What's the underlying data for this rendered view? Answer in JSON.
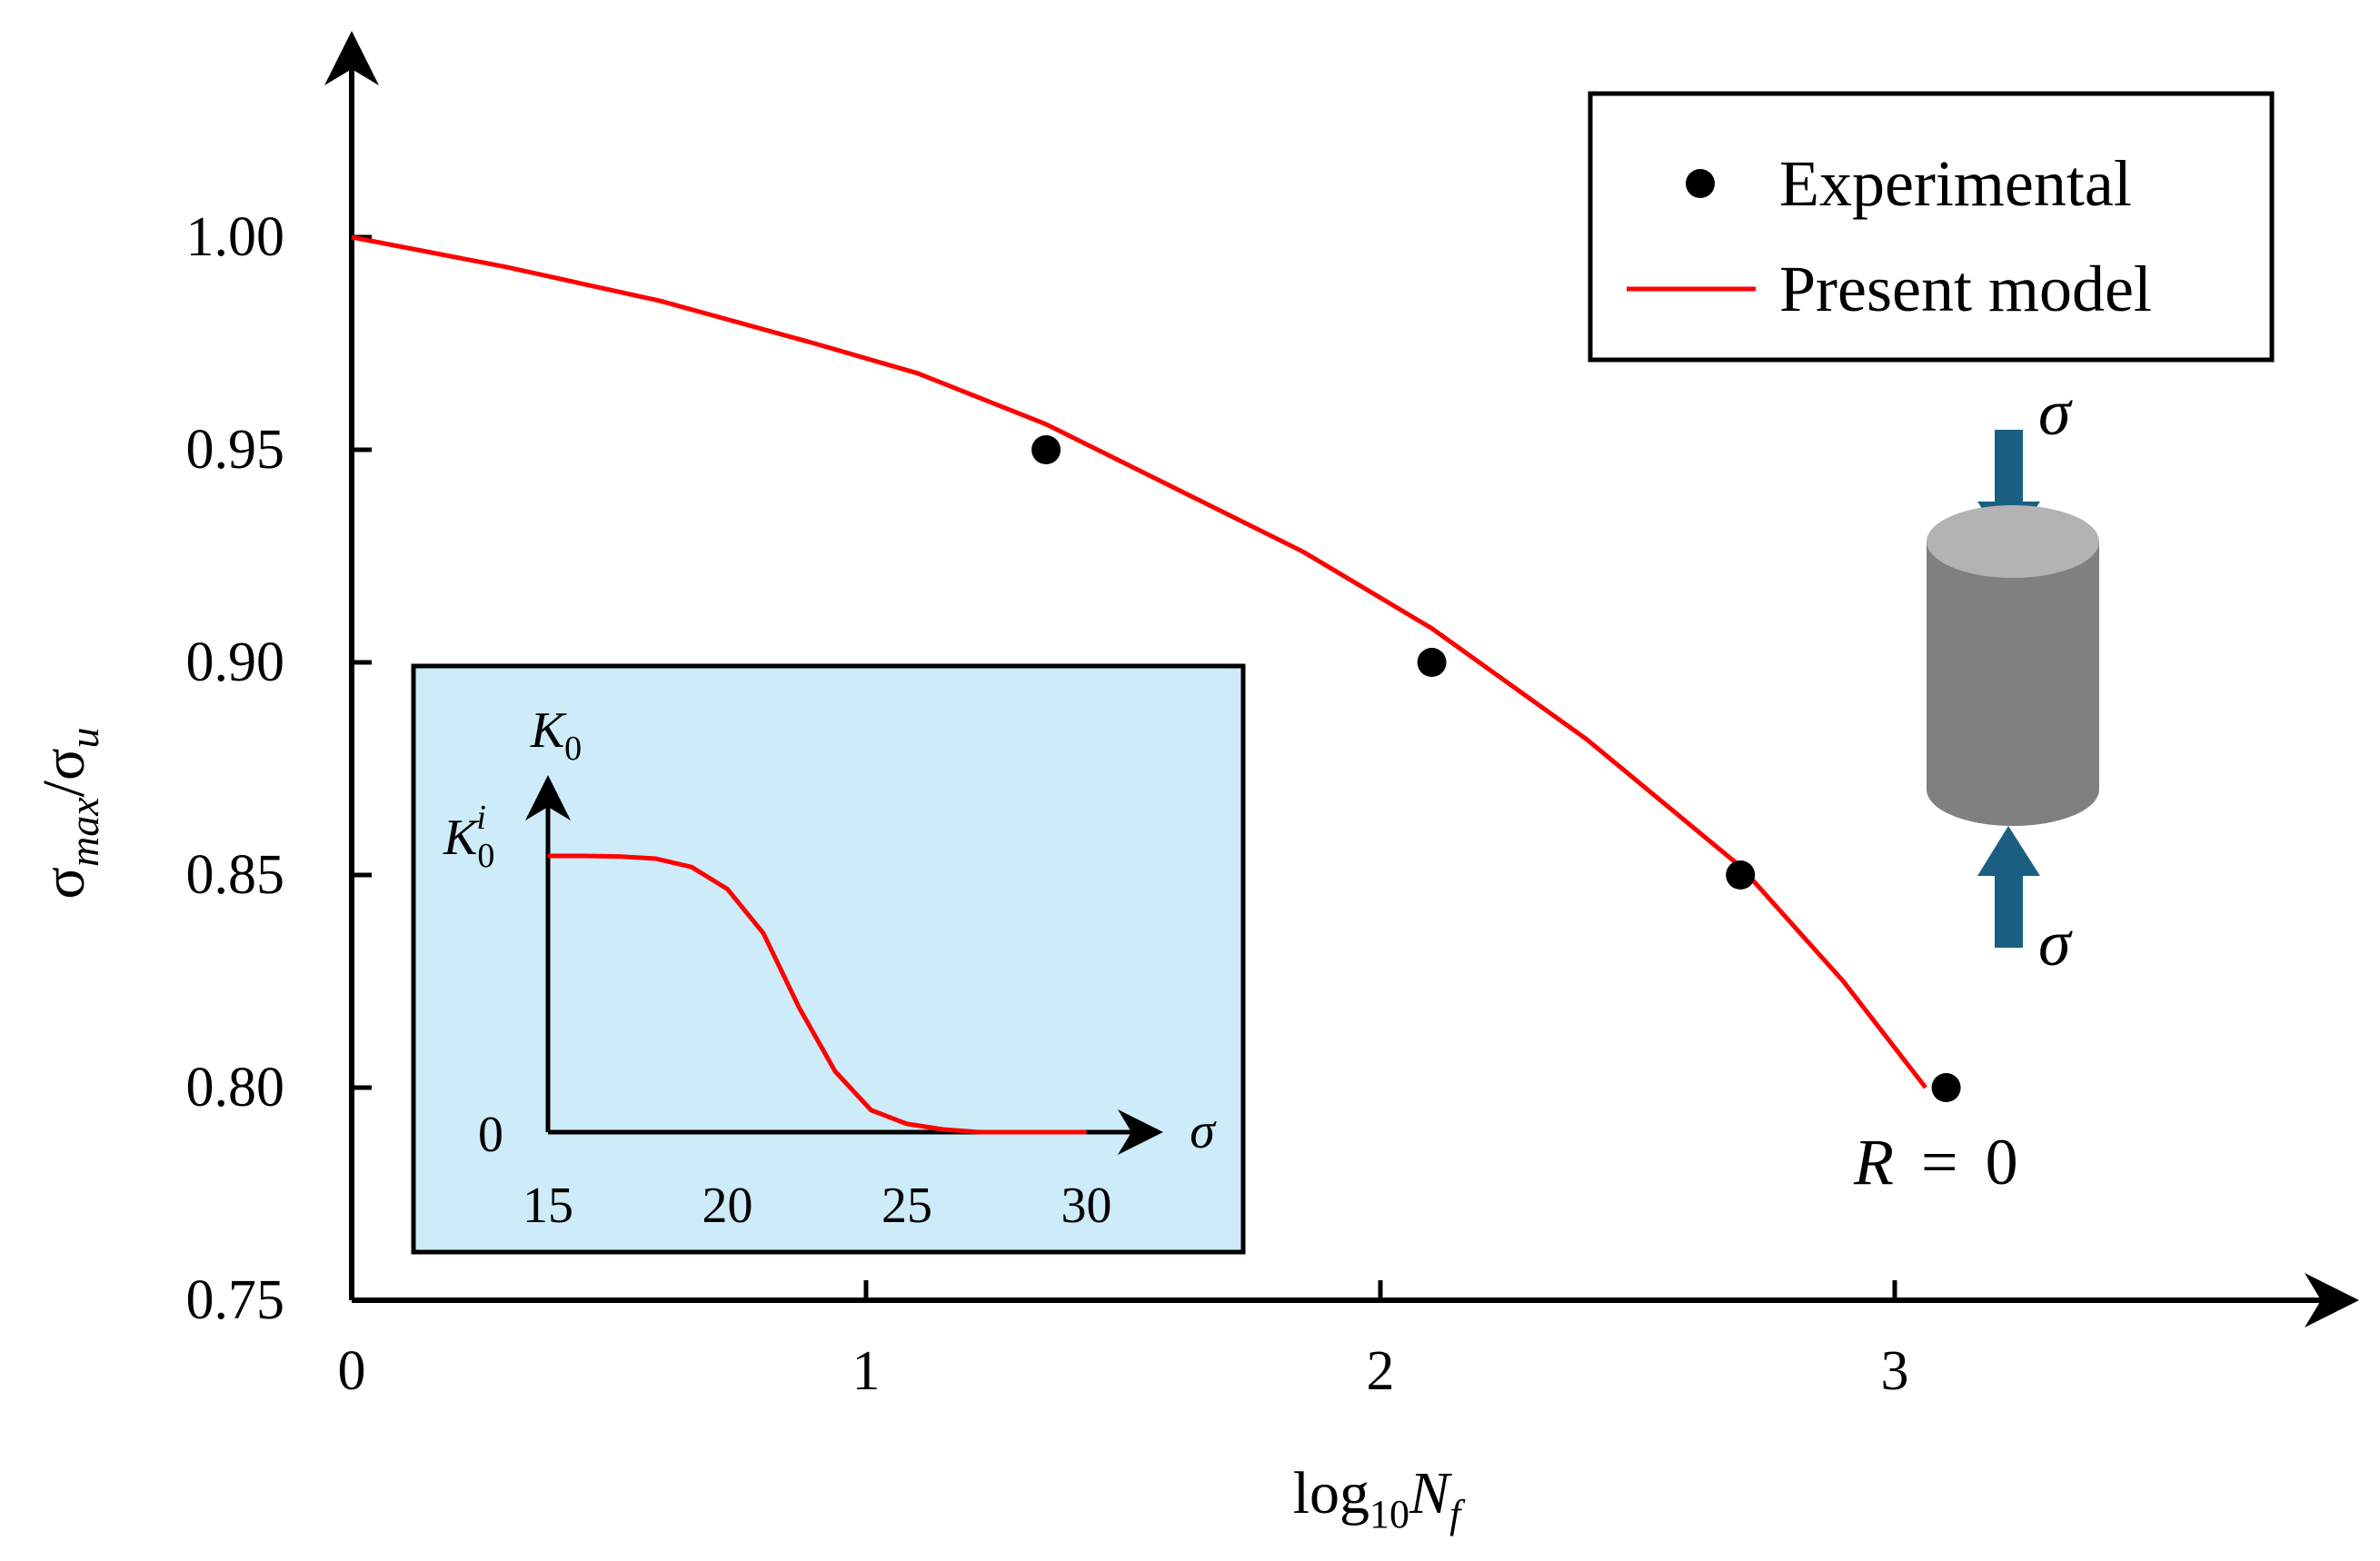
{
  "chart_data": {
    "type": "scatter",
    "title": "",
    "xlabel": "log10Nf",
    "ylabel": "σmax/σu",
    "xlim": [
      0,
      3.85
    ],
    "ylim": [
      0.75,
      1.05
    ],
    "x_ticks": [
      "0",
      "1",
      "2",
      "3"
    ],
    "y_ticks": [
      "0.75",
      "0.80",
      "0.85",
      "0.90",
      "0.95",
      "1.00"
    ],
    "grid": false,
    "legend_position": "top-right",
    "series": [
      {
        "name": "Experimental",
        "kind": "scatter",
        "color": "#000000",
        "x": [
          1.35,
          2.1,
          2.7,
          3.1
        ],
        "y": [
          0.95,
          0.9,
          0.85,
          0.8
        ]
      },
      {
        "name": "Present model",
        "kind": "line",
        "color": "#ff0000",
        "x": [
          0,
          0.3,
          0.6,
          0.9,
          1.1,
          1.35,
          1.6,
          1.85,
          2.1,
          2.4,
          2.7,
          2.9,
          3.06
        ],
        "y": [
          1.0,
          0.993,
          0.985,
          0.975,
          0.968,
          0.956,
          0.941,
          0.926,
          0.908,
          0.882,
          0.852,
          0.825,
          0.8
        ]
      }
    ],
    "annotations": {
      "load_symbol_top": "σ",
      "load_symbol_bottom": "σ",
      "ratio_label": "R = 0",
      "load_arrow_color": "#1a5f82",
      "cylinder_top_color": "#b3b3b3",
      "cylinder_body_color": "#808080"
    },
    "inset": {
      "type": "line",
      "background": "#cdebf8",
      "ylabel": "K0",
      "y_tick_top": "K0i",
      "y_tick_bottom": "0",
      "xlabel": "σ",
      "x_ticks": [
        "15",
        "20",
        "25",
        "30"
      ],
      "xlim": [
        15,
        30
      ],
      "series": {
        "color": "#ff0000",
        "x": [
          15,
          16,
          17,
          18,
          19,
          20,
          21,
          22,
          23,
          24,
          25,
          26,
          27,
          28,
          29,
          30
        ],
        "y": [
          1.0,
          1.0,
          0.998,
          0.99,
          0.96,
          0.88,
          0.72,
          0.45,
          0.22,
          0.08,
          0.03,
          0.01,
          0.0,
          0.0,
          0.0,
          0.0
        ]
      }
    }
  }
}
